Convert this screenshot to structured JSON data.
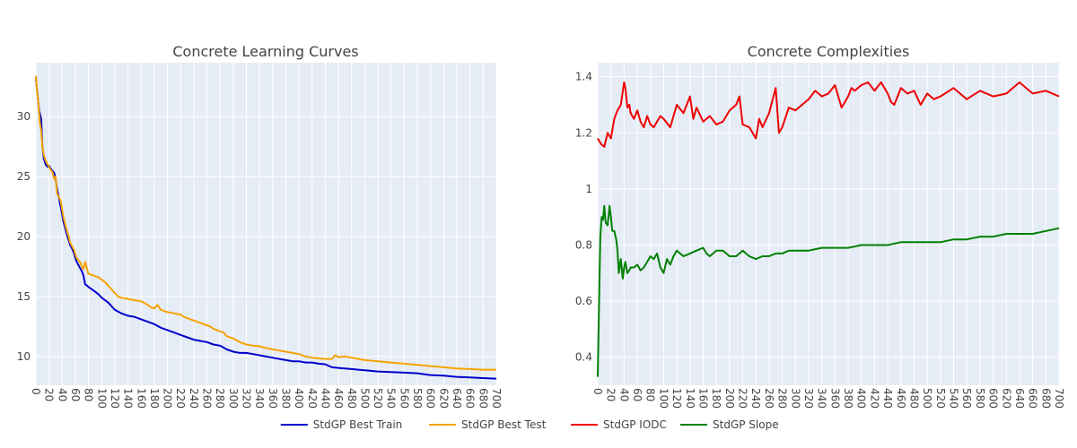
{
  "chart_data": [
    {
      "type": "line",
      "title": "Concrete Learning Curves",
      "xlim": [
        0,
        700
      ],
      "ylim": [
        7.6,
        34.5
      ],
      "x_ticks": [
        0,
        20,
        40,
        60,
        80,
        100,
        120,
        140,
        160,
        180,
        200,
        220,
        240,
        260,
        280,
        300,
        320,
        340,
        360,
        380,
        400,
        420,
        440,
        460,
        480,
        500,
        520,
        540,
        560,
        580,
        600,
        620,
        640,
        660,
        680,
        700
      ],
      "x_tick_labels": [
        "0",
        "20",
        "40",
        "60",
        "80",
        "100",
        "120",
        "140",
        "160",
        "180",
        "200",
        "220",
        "240",
        "260",
        "280",
        "300",
        "320",
        "340",
        "360",
        "380",
        "400",
        "420",
        "440",
        "460",
        "480",
        "500",
        "520",
        "540",
        "560",
        "580",
        "600",
        "620",
        "640",
        "660",
        "680",
        "700"
      ],
      "y_ticks": [
        10,
        15,
        20,
        25,
        30
      ],
      "y_tick_labels": [
        "10",
        "15",
        "20",
        "25",
        "30"
      ],
      "grid": true,
      "series": [
        {
          "name": "StdGP Best Train",
          "color": "#0000cc",
          "x": [
            0,
            3,
            5,
            8,
            10,
            12,
            15,
            18,
            20,
            22,
            25,
            28,
            30,
            32,
            35,
            38,
            40,
            42,
            45,
            48,
            50,
            52,
            55,
            58,
            60,
            62,
            65,
            68,
            70,
            72,
            75,
            78,
            80,
            85,
            90,
            95,
            100,
            110,
            120,
            130,
            140,
            150,
            160,
            170,
            180,
            190,
            200,
            210,
            220,
            230,
            240,
            250,
            260,
            270,
            280,
            290,
            300,
            310,
            320,
            330,
            340,
            350,
            360,
            370,
            380,
            390,
            400,
            410,
            420,
            430,
            440,
            450,
            460,
            470,
            480,
            490,
            500,
            520,
            540,
            560,
            580,
            600,
            620,
            640,
            660,
            680,
            700
          ],
          "y": [
            33.2,
            31.5,
            30.5,
            29.8,
            27.5,
            26.5,
            26.0,
            25.8,
            25.9,
            25.7,
            25.5,
            25.3,
            24.8,
            24.0,
            23.2,
            22.4,
            21.8,
            21.2,
            20.6,
            20.0,
            19.7,
            19.3,
            19.0,
            18.6,
            18.2,
            17.9,
            17.6,
            17.3,
            17.1,
            16.8,
            16.0,
            15.9,
            15.8,
            15.6,
            15.4,
            15.2,
            14.9,
            14.5,
            13.9,
            13.6,
            13.4,
            13.3,
            13.1,
            12.9,
            12.7,
            12.4,
            12.2,
            12.0,
            11.8,
            11.6,
            11.4,
            11.3,
            11.2,
            11.0,
            10.9,
            10.6,
            10.4,
            10.3,
            10.3,
            10.2,
            10.1,
            10.0,
            9.9,
            9.8,
            9.7,
            9.6,
            9.6,
            9.5,
            9.5,
            9.4,
            9.35,
            9.1,
            9.05,
            9.0,
            8.95,
            8.9,
            8.85,
            8.75,
            8.7,
            8.65,
            8.6,
            8.45,
            8.4,
            8.3,
            8.25,
            8.2,
            8.15
          ]
        },
        {
          "name": "StdGP Best Test",
          "color": "#f5a300",
          "x": [
            0,
            2,
            4,
            6,
            8,
            10,
            12,
            15,
            18,
            20,
            22,
            25,
            28,
            30,
            32,
            35,
            38,
            40,
            42,
            45,
            48,
            50,
            52,
            55,
            58,
            60,
            62,
            65,
            68,
            70,
            72,
            75,
            78,
            80,
            85,
            90,
            95,
            100,
            105,
            110,
            120,
            125,
            130,
            140,
            150,
            160,
            170,
            175,
            180,
            185,
            190,
            200,
            210,
            220,
            225,
            230,
            240,
            250,
            260,
            265,
            270,
            280,
            285,
            290,
            300,
            310,
            320,
            330,
            340,
            350,
            360,
            370,
            380,
            390,
            400,
            410,
            420,
            430,
            440,
            450,
            455,
            460,
            470,
            480,
            490,
            500,
            520,
            540,
            560,
            580,
            600,
            620,
            640,
            660,
            680,
            700
          ],
          "y": [
            33.4,
            32.0,
            31.0,
            29.5,
            28.8,
            27.5,
            26.8,
            26.3,
            26.0,
            25.8,
            25.6,
            25.4,
            24.8,
            25.0,
            23.6,
            23.3,
            22.9,
            22.2,
            21.6,
            20.9,
            20.3,
            20.0,
            19.5,
            19.2,
            18.9,
            18.5,
            18.2,
            18.0,
            17.8,
            17.5,
            17.3,
            17.9,
            17.2,
            16.9,
            16.8,
            16.7,
            16.6,
            16.4,
            16.2,
            15.9,
            15.3,
            15.0,
            14.9,
            14.8,
            14.7,
            14.6,
            14.3,
            14.1,
            14.0,
            14.3,
            13.9,
            13.7,
            13.6,
            13.5,
            13.3,
            13.2,
            13.0,
            12.8,
            12.6,
            12.5,
            12.3,
            12.1,
            12.0,
            11.7,
            11.5,
            11.2,
            11.0,
            10.9,
            10.85,
            10.7,
            10.6,
            10.5,
            10.4,
            10.3,
            10.2,
            10.0,
            9.9,
            9.85,
            9.8,
            9.8,
            10.1,
            9.95,
            10.0,
            9.9,
            9.8,
            9.7,
            9.6,
            9.5,
            9.4,
            9.3,
            9.2,
            9.1,
            9.0,
            8.95,
            8.9,
            8.9
          ]
        }
      ]
    },
    {
      "type": "line",
      "title": "Concrete Complexities",
      "xlim": [
        0,
        700
      ],
      "ylim": [
        0.3,
        1.45
      ],
      "x_ticks": [
        0,
        20,
        40,
        60,
        80,
        100,
        120,
        140,
        160,
        180,
        200,
        220,
        240,
        260,
        280,
        300,
        320,
        340,
        360,
        380,
        400,
        420,
        440,
        460,
        480,
        500,
        520,
        540,
        560,
        580,
        600,
        620,
        640,
        660,
        680,
        700
      ],
      "x_tick_labels": [
        "0",
        "20",
        "40",
        "60",
        "80",
        "100",
        "120",
        "140",
        "160",
        "180",
        "200",
        "220",
        "240",
        "260",
        "280",
        "300",
        "320",
        "340",
        "360",
        "380",
        "400",
        "420",
        "440",
        "460",
        "480",
        "500",
        "520",
        "540",
        "560",
        "580",
        "600",
        "620",
        "640",
        "660",
        "680",
        "700"
      ],
      "y_ticks": [
        0.4,
        0.6,
        0.8,
        1.0,
        1.2,
        1.4
      ],
      "y_tick_labels": [
        "0.4",
        "0.6",
        "0.8",
        "1",
        "1.2",
        "1.4"
      ],
      "grid": true,
      "series": [
        {
          "name": "StdGP IODC",
          "color": "#ee0000",
          "x": [
            0,
            5,
            10,
            15,
            20,
            25,
            30,
            35,
            40,
            42,
            45,
            48,
            50,
            55,
            60,
            65,
            70,
            75,
            80,
            85,
            90,
            95,
            100,
            110,
            120,
            130,
            140,
            145,
            150,
            160,
            170,
            180,
            190,
            200,
            210,
            215,
            220,
            230,
            240,
            245,
            250,
            260,
            270,
            275,
            280,
            290,
            300,
            310,
            320,
            330,
            340,
            350,
            360,
            370,
            380,
            385,
            390,
            400,
            410,
            420,
            430,
            440,
            445,
            450,
            460,
            470,
            480,
            490,
            500,
            510,
            520,
            540,
            560,
            580,
            600,
            620,
            640,
            650,
            660,
            680,
            700
          ],
          "y": [
            1.18,
            1.16,
            1.15,
            1.2,
            1.18,
            1.25,
            1.28,
            1.3,
            1.38,
            1.36,
            1.29,
            1.3,
            1.27,
            1.25,
            1.28,
            1.24,
            1.22,
            1.26,
            1.23,
            1.22,
            1.24,
            1.26,
            1.25,
            1.22,
            1.3,
            1.27,
            1.33,
            1.25,
            1.29,
            1.24,
            1.26,
            1.23,
            1.24,
            1.28,
            1.3,
            1.33,
            1.23,
            1.22,
            1.18,
            1.25,
            1.22,
            1.27,
            1.36,
            1.2,
            1.22,
            1.29,
            1.28,
            1.3,
            1.32,
            1.35,
            1.33,
            1.34,
            1.37,
            1.29,
            1.33,
            1.36,
            1.35,
            1.37,
            1.38,
            1.35,
            1.38,
            1.34,
            1.31,
            1.3,
            1.36,
            1.34,
            1.35,
            1.3,
            1.34,
            1.32,
            1.33,
            1.36,
            1.32,
            1.35,
            1.33,
            1.34,
            1.38,
            1.36,
            1.34,
            1.35,
            1.33
          ]
        },
        {
          "name": "StdGP Slope",
          "color": "#008000",
          "x": [
            0,
            2,
            4,
            6,
            8,
            10,
            12,
            15,
            18,
            20,
            22,
            25,
            28,
            30,
            32,
            35,
            38,
            40,
            42,
            45,
            48,
            50,
            55,
            60,
            65,
            70,
            75,
            80,
            85,
            90,
            95,
            100,
            105,
            110,
            115,
            120,
            130,
            140,
            150,
            160,
            165,
            170,
            180,
            190,
            200,
            210,
            220,
            230,
            240,
            250,
            260,
            270,
            280,
            290,
            300,
            320,
            340,
            360,
            380,
            400,
            420,
            440,
            460,
            480,
            500,
            520,
            540,
            560,
            580,
            600,
            620,
            640,
            660,
            680,
            700
          ],
          "y": [
            0.33,
            0.6,
            0.83,
            0.9,
            0.89,
            0.94,
            0.88,
            0.87,
            0.94,
            0.9,
            0.85,
            0.85,
            0.82,
            0.78,
            0.7,
            0.75,
            0.68,
            0.72,
            0.74,
            0.7,
            0.71,
            0.72,
            0.72,
            0.73,
            0.71,
            0.72,
            0.74,
            0.76,
            0.75,
            0.77,
            0.72,
            0.7,
            0.75,
            0.73,
            0.76,
            0.78,
            0.76,
            0.77,
            0.78,
            0.79,
            0.77,
            0.76,
            0.78,
            0.78,
            0.76,
            0.76,
            0.78,
            0.76,
            0.75,
            0.76,
            0.76,
            0.77,
            0.77,
            0.78,
            0.78,
            0.78,
            0.79,
            0.79,
            0.79,
            0.8,
            0.8,
            0.8,
            0.81,
            0.81,
            0.81,
            0.81,
            0.82,
            0.82,
            0.83,
            0.83,
            0.84,
            0.84,
            0.84,
            0.85,
            0.86
          ]
        }
      ]
    }
  ],
  "legend": {
    "placement": "bottom-center",
    "items": [
      {
        "label": "StdGP Best Train",
        "color": "#0000cc"
      },
      {
        "label": "StdGP Best Test",
        "color": "#f5a300"
      },
      {
        "label": "StdGP IODC",
        "color": "#ee0000"
      },
      {
        "label": "StdGP Slope",
        "color": "#008000"
      }
    ]
  }
}
